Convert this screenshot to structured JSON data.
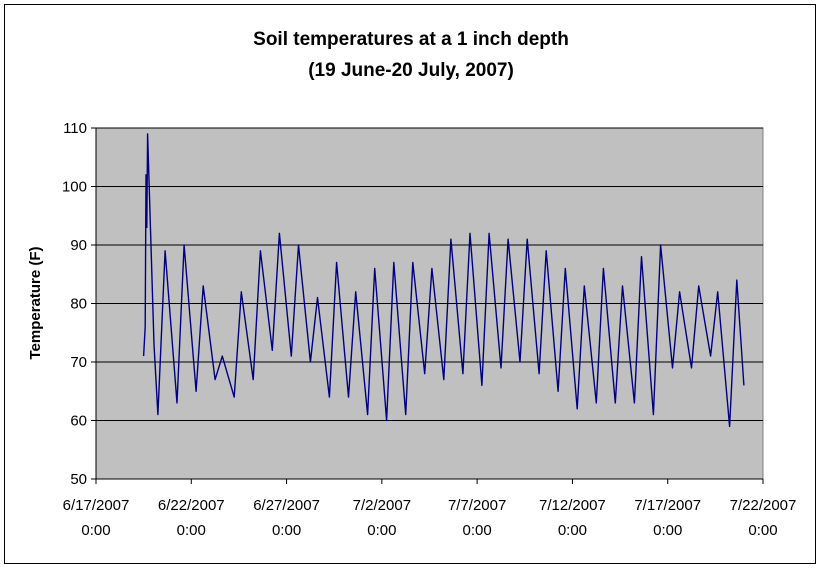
{
  "chart_data": {
    "type": "line",
    "title": "Soil temperatures at a 1 inch depth",
    "subtitle": "(19 June-20 July, 2007)",
    "ylabel": "Temperature (F)",
    "xlabel": "",
    "ylim": [
      50,
      110
    ],
    "yticks": [
      50,
      60,
      70,
      80,
      90,
      100,
      110
    ],
    "xlim": [
      "6/17/2007 0:00",
      "7/22/2007 0:00"
    ],
    "xticks": [
      {
        "date": "6/17/2007",
        "time": "0:00"
      },
      {
        "date": "6/22/2007",
        "time": "0:00"
      },
      {
        "date": "6/27/2007",
        "time": "0:00"
      },
      {
        "date": "7/2/2007",
        "time": "0:00"
      },
      {
        "date": "7/7/2007",
        "time": "0:00"
      },
      {
        "date": "7/12/2007",
        "time": "0:00"
      },
      {
        "date": "7/17/2007",
        "time": "0:00"
      },
      {
        "date": "7/22/2007",
        "time": "0:00"
      }
    ],
    "grid": "horizontal",
    "plot_background": "#c0c0c0",
    "line_color": "#000080",
    "series": [
      {
        "x": [
          "6/19/2007 12:00",
          "6/19/2007 14:00",
          "6/19/2007 15:00",
          "6/19/2007 16:00",
          "6/19/2007 17:00",
          "6/20/2007 1:00",
          "6/20/2007 6:00",
          "6/20/2007 15:00",
          "6/21/2007 6:00",
          "6/21/2007 15:00",
          "6/22/2007 6:00",
          "6/22/2007 15:00",
          "6/23/2007 6:00",
          "6/23/2007 15:00",
          "6/24/2007 6:00",
          "6/24/2007 15:00",
          "6/25/2007 6:00",
          "6/25/2007 15:00",
          "6/26/2007 6:00",
          "6/26/2007 15:00",
          "6/27/2007 6:00",
          "6/27/2007 15:00",
          "6/28/2007 6:00",
          "6/28/2007 15:00",
          "6/29/2007 6:00",
          "6/29/2007 15:00",
          "6/30/2007 6:00",
          "6/30/2007 15:00",
          "7/1/2007 6:00",
          "7/1/2007 15:00",
          "7/2/2007 6:00",
          "7/2/2007 15:00",
          "7/3/2007 6:00",
          "7/3/2007 15:00",
          "7/4/2007 6:00",
          "7/4/2007 15:00",
          "7/5/2007 6:00",
          "7/5/2007 15:00",
          "7/6/2007 6:00",
          "7/6/2007 15:00",
          "7/7/2007 6:00",
          "7/7/2007 15:00",
          "7/8/2007 6:00",
          "7/8/2007 15:00",
          "7/9/2007 6:00",
          "7/9/2007 15:00",
          "7/10/2007 6:00",
          "7/10/2007 15:00",
          "7/11/2007 6:00",
          "7/11/2007 15:00",
          "7/12/2007 6:00",
          "7/12/2007 15:00",
          "7/13/2007 6:00",
          "7/13/2007 15:00",
          "7/14/2007 6:00",
          "7/14/2007 15:00",
          "7/15/2007 6:00",
          "7/15/2007 15:00",
          "7/16/2007 6:00",
          "7/16/2007 15:00",
          "7/17/2007 6:00",
          "7/17/2007 15:00",
          "7/18/2007 6:00",
          "7/18/2007 15:00",
          "7/19/2007 6:00",
          "7/19/2007 15:00",
          "7/20/2007 6:00",
          "7/20/2007 15:00",
          "7/21/2007 0:00"
        ],
        "y": [
          71,
          76,
          102,
          93,
          109,
          73,
          61,
          89,
          63,
          90,
          65,
          83,
          67,
          71,
          64,
          82,
          67,
          89,
          72,
          92,
          71,
          90,
          70,
          81,
          64,
          87,
          64,
          82,
          61,
          86,
          60,
          87,
          61,
          87,
          68,
          86,
          67,
          91,
          68,
          92,
          66,
          92,
          69,
          91,
          70,
          91,
          68,
          89,
          65,
          86,
          62,
          83,
          63,
          86,
          63,
          83,
          63,
          88,
          61,
          90,
          69,
          82,
          69,
          83,
          71,
          82,
          59,
          84,
          66
        ]
      }
    ]
  }
}
